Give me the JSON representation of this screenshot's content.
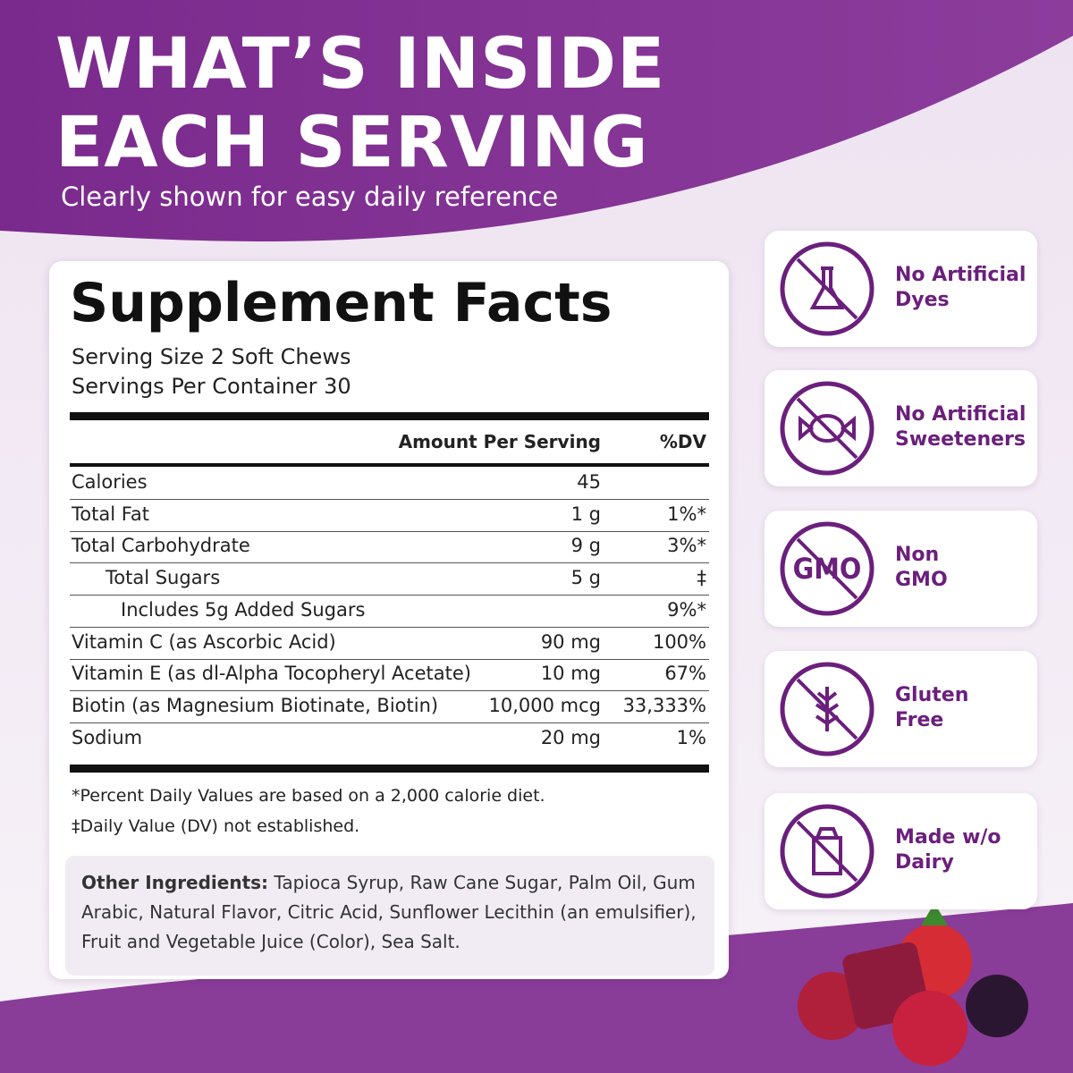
{
  "header": {
    "title_lines": [
      "WHAT’S INSIDE",
      "EACH SERVING"
    ],
    "subtitle": "Clearly shown for easy daily reference"
  },
  "facts": {
    "title": "Supplement Facts",
    "serving_size": "Serving Size 2 Soft Chews",
    "servings_per_container": "Servings Per Container 30",
    "columns": [
      "Amount Per Serving",
      "%DV"
    ],
    "rows": [
      {
        "name": "Calories",
        "amount": "45"
      },
      {
        "name": "Total Fat",
        "amount": "1 g",
        "dv": "1%*"
      },
      {
        "name": "Total Carbohydrate",
        "amount": "9 g",
        "dv": "3%*"
      },
      {
        "name": "Total Sugars",
        "amount": "5 g",
        "dv": "‡"
      },
      {
        "name": "Includes 5g Added Sugars",
        "dv": "9%*"
      },
      {
        "name": "Vitamin C (as Ascorbic Acid)",
        "amount": "90 mg",
        "dv": "100%"
      },
      {
        "name": "Vitamin E (as dl-Alpha Tocopheryl Acetate)",
        "amount": "10 mg",
        "dv": "67%"
      },
      {
        "name": "Biotin (as Magnesium Biotinate, Biotin)",
        "amount": "10,000 mcg",
        "dv": "33,333%"
      },
      {
        "name": "Sodium",
        "amount": "20 mg",
        "dv": "1%"
      }
    ],
    "footnotes": [
      "*Percent Daily Values are based on a 2,000 calorie diet.",
      "‡Daily Value (DV) not established."
    ],
    "other_ingredients": {
      "label": "Other Ingredients:",
      "text": "Tapioca Syrup, Raw Cane Sugar, Palm Oil, Gum Arabic, Natural Flavor, Citric Acid, Sunflower Lecithin (an emulsifier), Fruit and Vegetable Juice (Color), Sea Salt."
    }
  },
  "badges": [
    {
      "lines": [
        "No Artificial",
        "Dyes"
      ]
    },
    {
      "lines": [
        "No Artificial",
        "Sweeteners"
      ]
    },
    {
      "lines": [
        "Non",
        "GMO"
      ]
    },
    {
      "lines": [
        "Gluten",
        "Free"
      ]
    },
    {
      "lines": [
        "Made w/o",
        "Dairy"
      ]
    }
  ]
}
